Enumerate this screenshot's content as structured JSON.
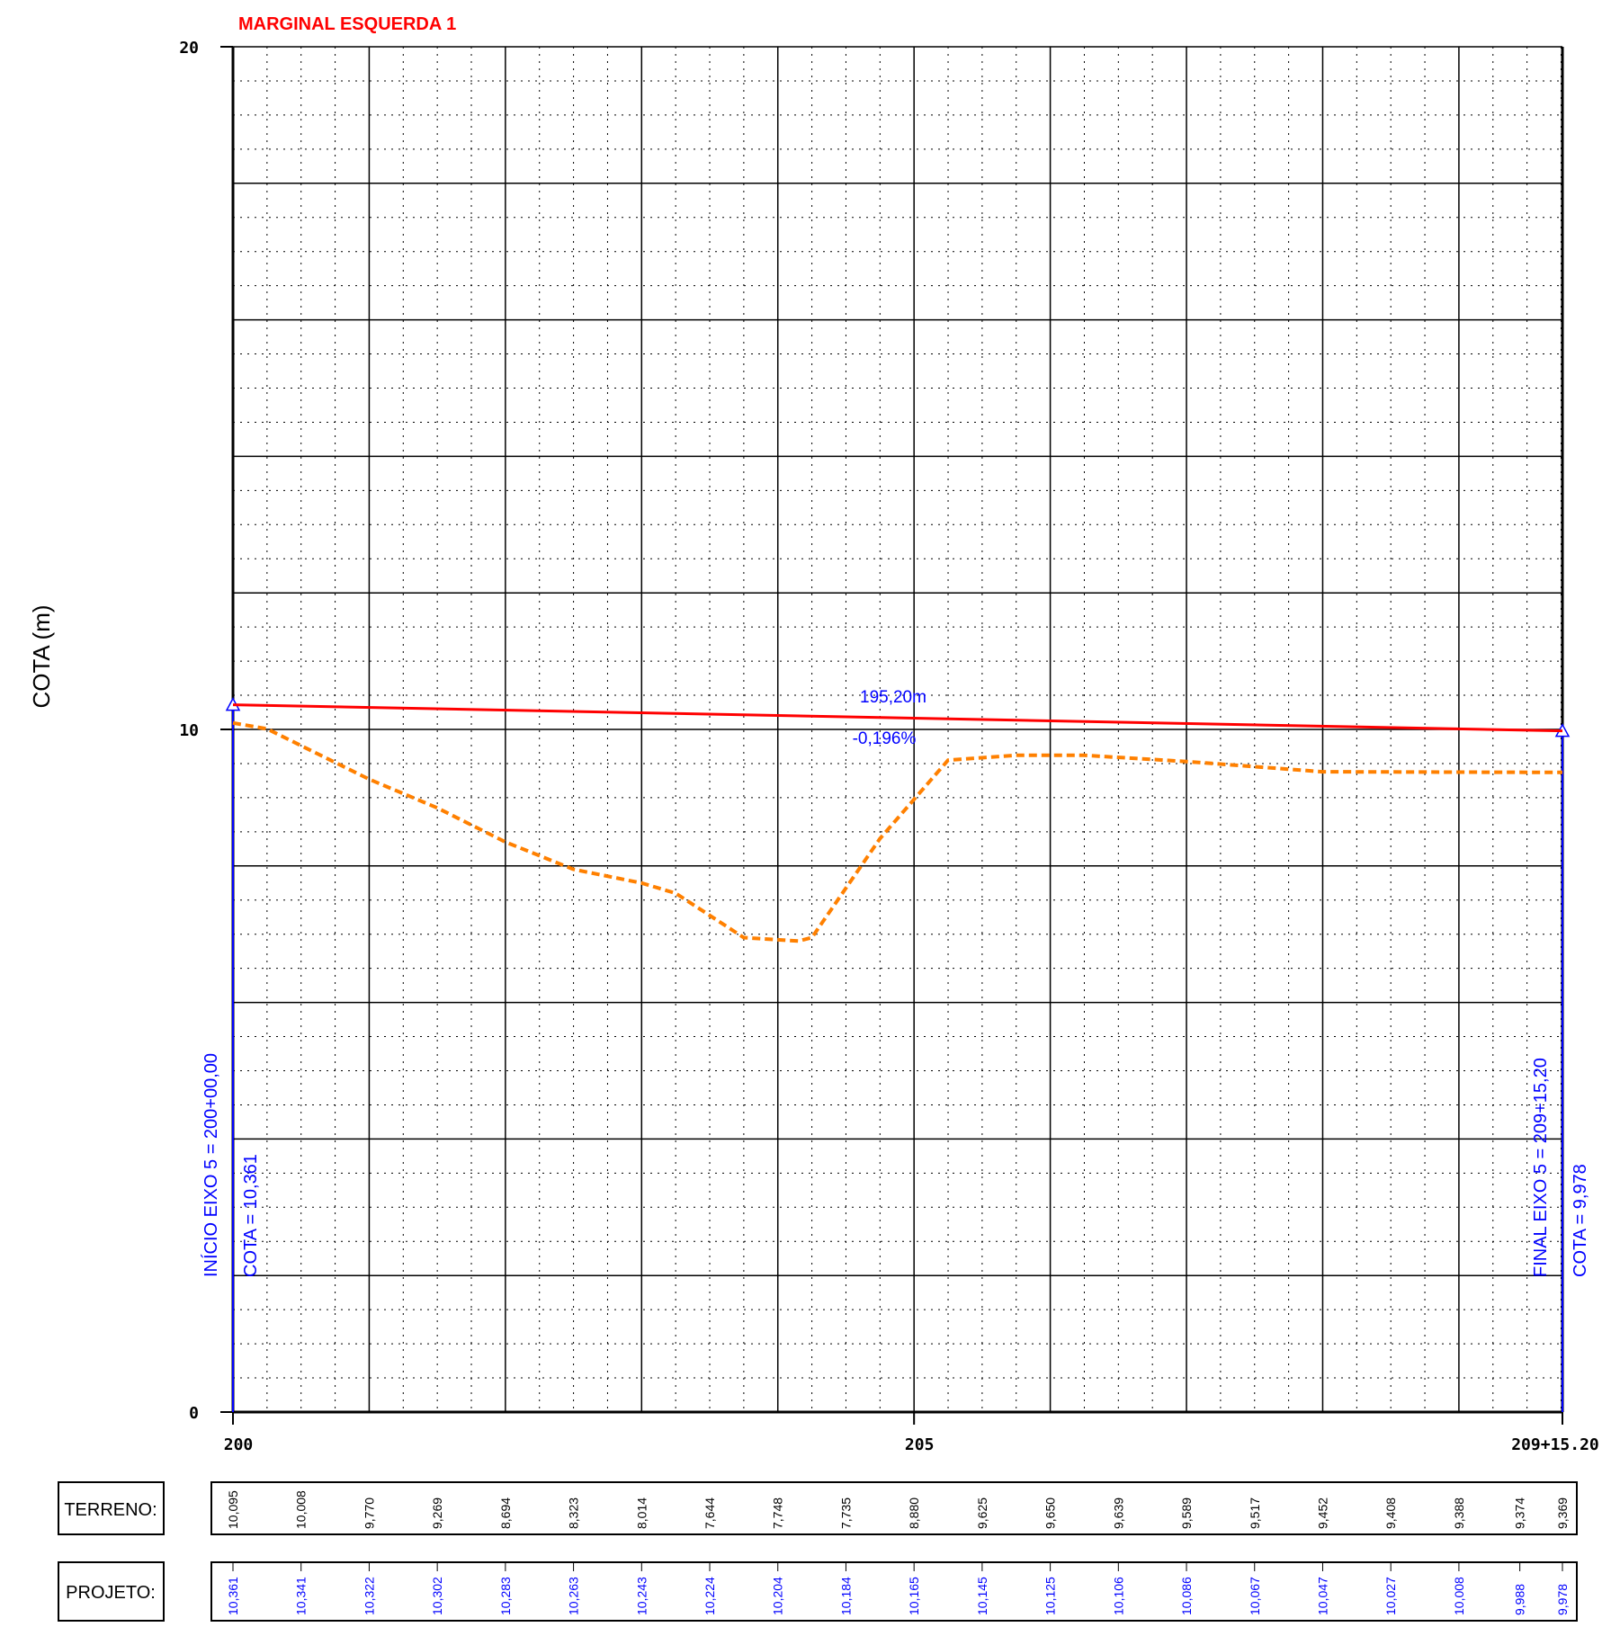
{
  "title": "MARGINAL ESQUERDA 1",
  "colors": {
    "project": "#ff0000",
    "terrain": "#ff8000",
    "annotation": "#0000ff",
    "grid": "#000000"
  },
  "chart_data": {
    "type": "line",
    "title": "MARGINAL ESQUERDA 1",
    "ylabel": "COTA (m)",
    "xlabel": "",
    "ylim": [
      0,
      20
    ],
    "xlim": [
      0,
      195.2
    ],
    "y_ticks": [
      {
        "value": 0,
        "label": "0"
      },
      {
        "value": 10,
        "label": "10"
      },
      {
        "value": 20,
        "label": "20"
      }
    ],
    "x_ticks": [
      {
        "value": 0,
        "label": "200"
      },
      {
        "value": 100,
        "label": "205"
      },
      {
        "value": 195.2,
        "label": "209+15.20"
      }
    ],
    "grid": true,
    "stations": [
      0,
      10,
      20,
      30,
      40,
      50,
      60,
      70,
      80,
      90,
      100,
      110,
      120,
      130,
      140,
      150,
      160,
      170,
      180,
      190,
      195.2
    ],
    "series": [
      {
        "name": "TERRENO",
        "style": "dashed",
        "values": [
          10.095,
          10.008,
          9.77,
          9.269,
          8.694,
          8.323,
          8.014,
          7.644,
          7.748,
          7.735,
          8.88,
          9.625,
          9.65,
          9.639,
          9.589,
          9.517,
          9.452,
          9.408,
          9.388,
          9.374,
          9.369
        ],
        "labels": [
          "10,095",
          "10,008",
          "9,770",
          "9,269",
          "8,694",
          "8,323",
          "8,014",
          "7,644",
          "7,748",
          "7,735",
          "8,880",
          "9,625",
          "9,650",
          "9,639",
          "9,589",
          "9,517",
          "9,452",
          "9,408",
          "9,388",
          "9,374",
          "9,369"
        ]
      },
      {
        "name": "PROJETO",
        "style": "solid",
        "values": [
          10.361,
          10.341,
          10.322,
          10.302,
          10.283,
          10.263,
          10.243,
          10.224,
          10.204,
          10.184,
          10.165,
          10.145,
          10.125,
          10.106,
          10.086,
          10.067,
          10.047,
          10.027,
          10.008,
          9.988,
          9.978
        ],
        "labels": [
          "10,361",
          "10,341",
          "10,322",
          "10,302",
          "10,283",
          "10,263",
          "10,243",
          "10,224",
          "10,204",
          "10,184",
          "10,165",
          "10,145",
          "10,125",
          "10,106",
          "10,086",
          "10,067",
          "10,047",
          "10,027",
          "10,008",
          "9,988",
          "9,978"
        ]
      }
    ],
    "terrain_profile_points": [
      [
        0,
        10.095
      ],
      [
        5,
        10.008
      ],
      [
        20,
        9.27
      ],
      [
        30,
        8.85
      ],
      [
        40,
        8.35
      ],
      [
        50,
        7.95
      ],
      [
        60,
        7.75
      ],
      [
        65,
        7.6
      ],
      [
        75,
        6.95
      ],
      [
        83,
        6.9
      ],
      [
        85,
        6.95
      ],
      [
        95,
        8.4
      ],
      [
        105,
        9.55
      ],
      [
        115,
        9.62
      ],
      [
        125,
        9.62
      ],
      [
        140,
        9.53
      ],
      [
        160,
        9.38
      ],
      [
        195.2,
        9.37
      ]
    ],
    "annotations": {
      "length": "195,20m",
      "slope": "-0,196%",
      "start_station": "INÍCIO EIXO 5 =  200+00,00",
      "start_elev": "COTA =  10,361",
      "end_station": "FINAL EIXO 5 =  209+15,20",
      "end_elev": "COTA =  9,978"
    }
  },
  "table": {
    "terrain_header": "TERRENO:",
    "project_header": "PROJETO:"
  }
}
